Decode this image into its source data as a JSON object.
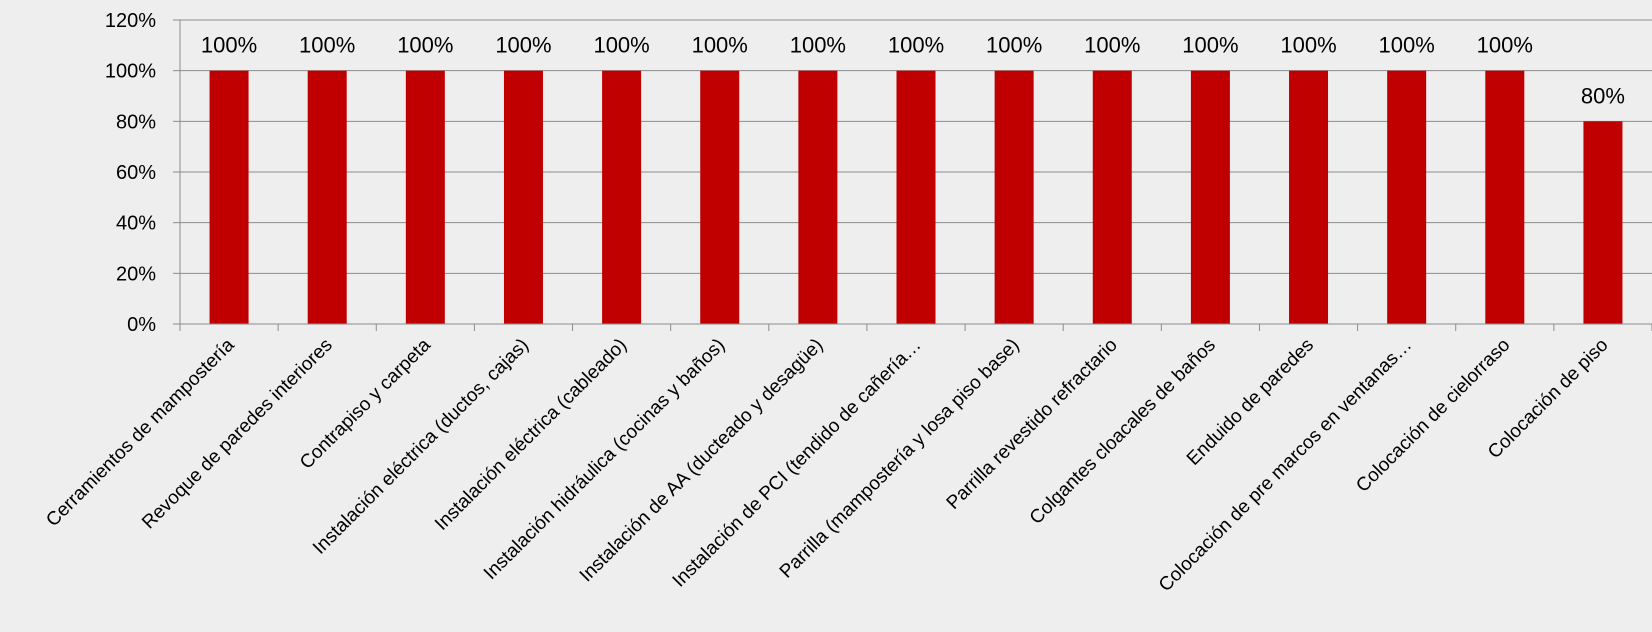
{
  "chart_data": {
    "type": "bar",
    "title": "",
    "xlabel": "",
    "ylabel": "",
    "categories": [
      "Cerramientos de mampostería",
      "Revoque de paredes interiores",
      "Contrapiso y carpeta",
      "Instalación eléctrica (ductos, cajas)",
      "Instalación eléctrica (cableado)",
      "Instalación hidráulica (cocinas y baños)",
      "Instalación de AA (ducteado y desagüe)",
      "Instalación de PCI (tendido de cañería…",
      "Parrilla (mampostería y losa piso base)",
      "Parrilla revestido refractario",
      "Colgantes cloacales de baños",
      "Enduido de paredes",
      "Colocación de pre marcos en ventanas…",
      "Colocación de cielorraso",
      "Colocación de piso"
    ],
    "values": [
      1.0,
      1.0,
      1.0,
      1.0,
      1.0,
      1.0,
      1.0,
      1.0,
      1.0,
      1.0,
      1.0,
      1.0,
      1.0,
      1.0,
      0.8
    ],
    "data_labels": [
      "100%",
      "100%",
      "100%",
      "100%",
      "100%",
      "100%",
      "100%",
      "100%",
      "100%",
      "100%",
      "100%",
      "100%",
      "100%",
      "100%",
      "80%"
    ],
    "ylim": [
      0,
      1.2
    ],
    "yticks": [
      0,
      0.2,
      0.4,
      0.6,
      0.8,
      1.0,
      1.2
    ],
    "ytick_labels": [
      "0%",
      "20%",
      "40%",
      "60%",
      "80%",
      "100%",
      "120%"
    ],
    "grid": true,
    "legend": "none",
    "colors": {
      "bar": "#c00000",
      "grid": "#8c8c8c",
      "axis": "#8c8c8c",
      "background": "#eeeeee"
    }
  }
}
